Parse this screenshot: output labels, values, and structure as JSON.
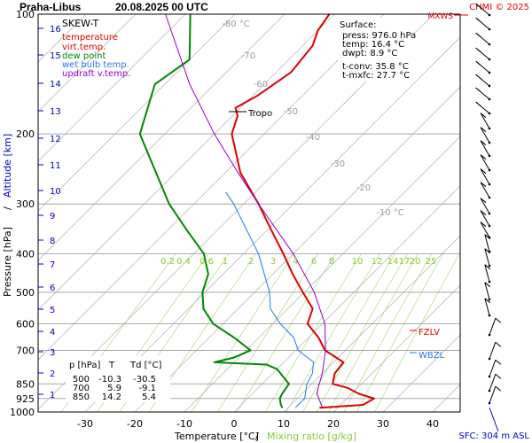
{
  "header": {
    "station": "Praha-Libus",
    "datetime": "20.08.2025 00 UTC",
    "credit": "CHMI © 2025"
  },
  "legend": {
    "title": "SKEW-T",
    "items": [
      {
        "label": "temperature",
        "color": "#dd0000"
      },
      {
        "label": "virt.temp.",
        "color": "#dd0000"
      },
      {
        "label": "dew point",
        "color": "#008800"
      },
      {
        "label": "wet bulb temp.",
        "color": "#2277ee"
      },
      {
        "label": "updraft v.temp.",
        "color": "#9900cc"
      }
    ]
  },
  "surface_box": {
    "title": "Surface:",
    "press": "press: 976.0 hPa",
    "temp": "temp: 16.4 °C",
    "dwpt": "dwpt: 8.9 °C",
    "tconv": "t-conv: 35.8 °C",
    "tmxfc": "t-mxfc: 27.7 °C"
  },
  "table": {
    "headers": [
      "p [hPa]",
      "T",
      "Td [°C]"
    ],
    "rows": [
      [
        "500",
        "-10.3",
        "-30.5"
      ],
      [
        "700",
        "5.9",
        "-9.1"
      ],
      [
        "850",
        "14.2",
        "5.4"
      ]
    ]
  },
  "labels": {
    "tropo": "Tropo",
    "fzlv": "FZLV",
    "wbzl": "WBZL",
    "mxws": "MXWS",
    "sfc": "SFC: 304 m ASL"
  },
  "colors": {
    "temperature": "#dd0000",
    "dewpoint": "#008800",
    "wetbulb": "#2277ee",
    "updraft": "#9900cc",
    "isotherm": "#bdbdbd",
    "mixing": "#b8e090",
    "altitude": "#0000cc"
  },
  "chart_data": {
    "type": "line",
    "title": "Praha-Libus 20.08.2025 00 UTC",
    "xlabel": "Temperature [°C]",
    "xlabel2": "Mixing ratio [g/kg]",
    "ylabel": "Pressure [hPa]",
    "ylabel2": "Altitude [km]",
    "xlim": [
      -37,
      43
    ],
    "ylim": [
      1000,
      100
    ],
    "y_scale": "log",
    "x_ticks": [
      -30,
      -20,
      -10,
      0,
      10,
      20,
      30,
      40
    ],
    "y_ticks": [
      100,
      200,
      300,
      400,
      500,
      600,
      700,
      850,
      925,
      1000
    ],
    "altitude_ticks_km": [
      1,
      2,
      3,
      4,
      5,
      6,
      7,
      8,
      9,
      10,
      11,
      12,
      13,
      14,
      15,
      16
    ],
    "isotherm_labels": [
      -80,
      -70,
      -60,
      -50,
      -40,
      -30,
      -20,
      -10
    ],
    "mixing_ratio_labels": [
      "0.2",
      "0.4",
      "0.6",
      "1",
      "2",
      "3",
      "4",
      "6",
      "8",
      "10",
      "12",
      "14",
      "17",
      "20",
      "25"
    ],
    "grid": true,
    "series": [
      {
        "name": "temperature",
        "points": [
          [
            976,
            16.4
          ],
          [
            960,
            24.5
          ],
          [
            925,
            25.5
          ],
          [
            900,
            21.5
          ],
          [
            870,
            18.0
          ],
          [
            850,
            14.2
          ],
          [
            800,
            12.5
          ],
          [
            750,
            12.0
          ],
          [
            700,
            5.9
          ],
          [
            650,
            2.0
          ],
          [
            600,
            -3.0
          ],
          [
            550,
            -5.0
          ],
          [
            500,
            -10.3
          ],
          [
            450,
            -16.0
          ],
          [
            400,
            -22.0
          ],
          [
            350,
            -29.0
          ],
          [
            300,
            -37.0
          ],
          [
            250,
            -47.0
          ],
          [
            200,
            -56.5
          ],
          [
            180,
            -59.0
          ],
          [
            172,
            -61.0
          ],
          [
            160,
            -59.0
          ],
          [
            140,
            -57.0
          ],
          [
            120,
            -58.0
          ],
          [
            110,
            -60.0
          ],
          [
            100,
            -61.0
          ]
        ]
      },
      {
        "name": "dew point",
        "points": [
          [
            976,
            8.9
          ],
          [
            960,
            8.0
          ],
          [
            925,
            6.5
          ],
          [
            900,
            6.0
          ],
          [
            850,
            5.4
          ],
          [
            780,
            0.0
          ],
          [
            760,
            -3.0
          ],
          [
            750,
            -14.0
          ],
          [
            730,
            -11.0
          ],
          [
            700,
            -9.1
          ],
          [
            650,
            -15.0
          ],
          [
            600,
            -22.0
          ],
          [
            550,
            -27.0
          ],
          [
            500,
            -30.5
          ],
          [
            450,
            -33.0
          ],
          [
            400,
            -38.0
          ],
          [
            350,
            -46.0
          ],
          [
            300,
            -55.0
          ],
          [
            250,
            -64.0
          ],
          [
            200,
            -75.0
          ],
          [
            150,
            -82.0
          ],
          [
            130,
            -80.0
          ],
          [
            100,
            -89.0
          ]
        ]
      },
      {
        "name": "wet bulb temp.",
        "points": [
          [
            976,
            11.5
          ],
          [
            925,
            11.5
          ],
          [
            850,
            9.0
          ],
          [
            800,
            8.0
          ],
          [
            750,
            6.0
          ],
          [
            700,
            0.5
          ],
          [
            650,
            -3.0
          ],
          [
            600,
            -8.5
          ],
          [
            550,
            -13.5
          ],
          [
            500,
            -17.0
          ],
          [
            400,
            -27.0
          ],
          [
            300,
            -42.0
          ],
          [
            280,
            -46.0
          ]
        ]
      },
      {
        "name": "updraft v.temp.",
        "points": [
          [
            976,
            17.0
          ],
          [
            900,
            13.0
          ],
          [
            850,
            11.5
          ],
          [
            800,
            10.0
          ],
          [
            700,
            6.0
          ],
          [
            600,
            0.5
          ],
          [
            500,
            -8.0
          ],
          [
            400,
            -20.0
          ],
          [
            300,
            -37.0
          ],
          [
            250,
            -47.5
          ],
          [
            200,
            -60.0
          ],
          [
            150,
            -75.0
          ],
          [
            100,
            -94.0
          ]
        ]
      }
    ]
  }
}
